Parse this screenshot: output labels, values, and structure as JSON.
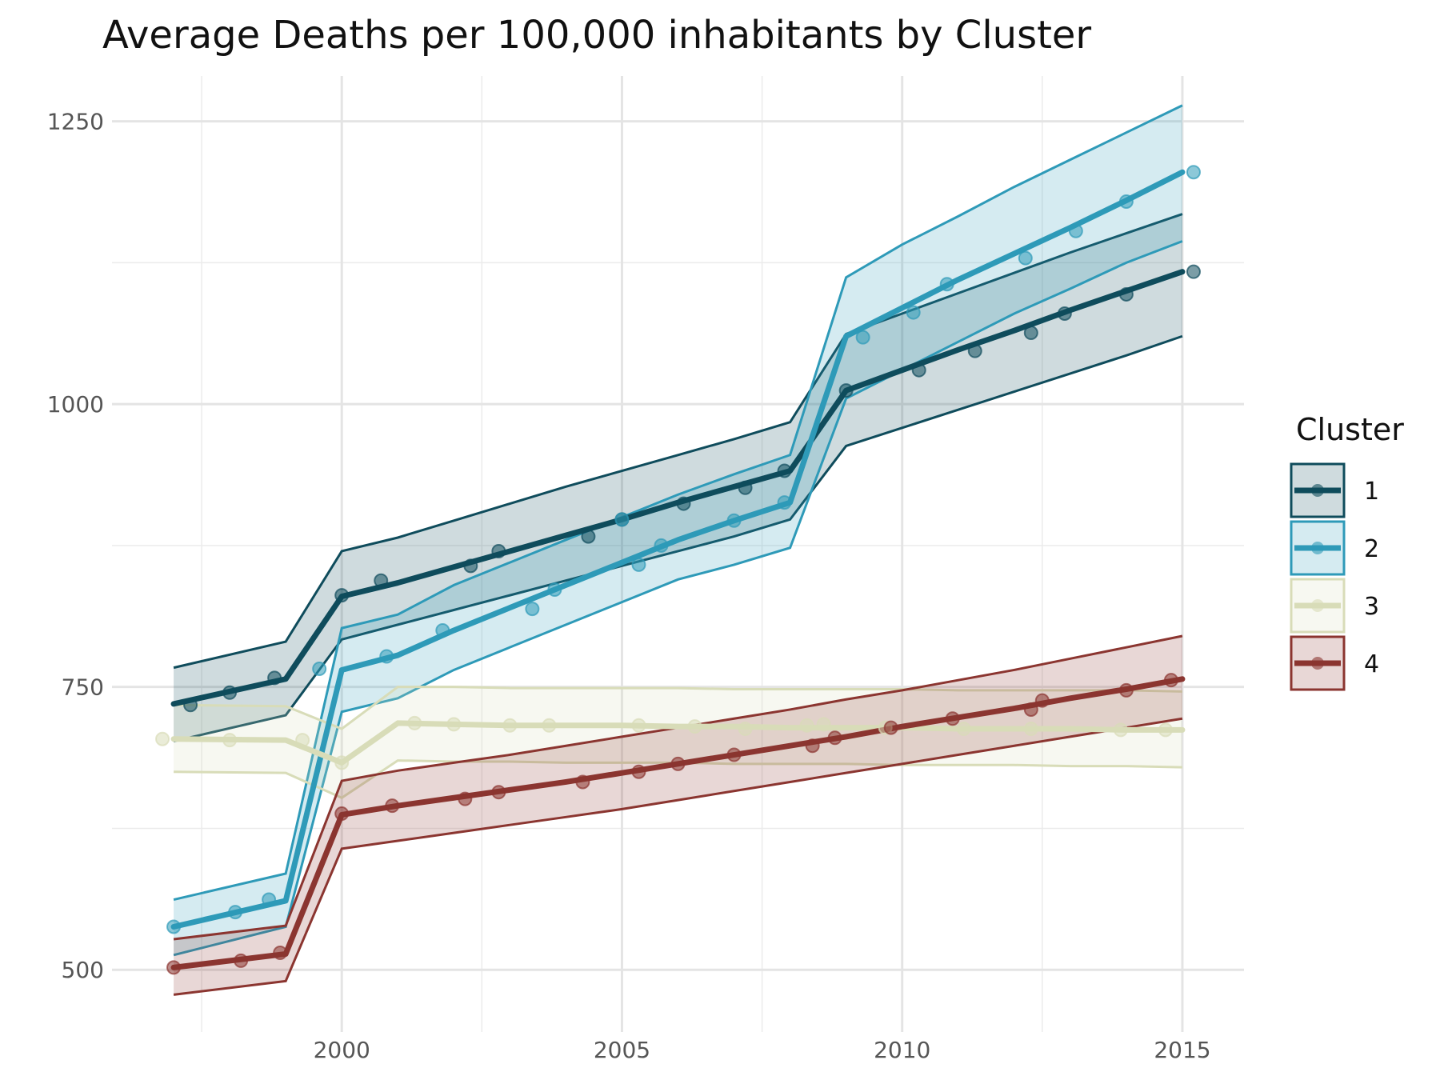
{
  "chart_data": {
    "type": "line",
    "title": "Average Deaths per 100,000 inhabitants by Cluster",
    "xlabel": "",
    "ylabel": "",
    "xlim": [
      1995.9,
      2016.1
    ],
    "ylim": [
      445,
      1290
    ],
    "x_ticks": [
      2000,
      2005,
      2010,
      2015
    ],
    "x_tick_labels": [
      "2000",
      "2005",
      "2010",
      "2015"
    ],
    "y_ticks": [
      500,
      750,
      1000,
      1250
    ],
    "y_tick_labels": [
      "500",
      "750",
      "1000",
      "1250"
    ],
    "grid": true,
    "legend": {
      "title": "Cluster",
      "position": "right"
    },
    "x": [
      1997,
      1999,
      2000,
      2001,
      2002,
      2003,
      2004,
      2005,
      2006,
      2007,
      2008,
      2009,
      2010,
      2011,
      2012,
      2013,
      2014,
      2015
    ],
    "series": [
      {
        "name": "1",
        "color": "#0f4c5c",
        "values": [
          735,
          757,
          830,
          842,
          856,
          870,
          884,
          898,
          913,
          927,
          941,
          1012,
          1030,
          1048,
          1065,
          1083,
          1100,
          1117
        ],
        "lower": [
          702,
          725,
          792,
          805,
          818,
          831,
          844,
          857,
          870,
          883,
          898,
          963,
          979,
          995,
          1011,
          1027,
          1043,
          1060
        ],
        "upper": [
          767,
          790,
          870,
          882,
          897,
          912,
          927,
          941,
          955,
          969,
          984,
          1062,
          1080,
          1098,
          1116,
          1134,
          1151,
          1168
        ],
        "points": [
          [
            1997.3,
            734
          ],
          [
            1998,
            745
          ],
          [
            1998.8,
            758
          ],
          [
            2000,
            831
          ],
          [
            2000.7,
            844
          ],
          [
            2002.3,
            857
          ],
          [
            2002.8,
            870
          ],
          [
            2004.4,
            883
          ],
          [
            2005,
            898
          ],
          [
            2006.1,
            912
          ],
          [
            2007.2,
            926
          ],
          [
            2007.9,
            941
          ],
          [
            2009,
            1012
          ],
          [
            2010.3,
            1030
          ],
          [
            2011.3,
            1047
          ],
          [
            2012.3,
            1063
          ],
          [
            2012.9,
            1080
          ],
          [
            2014,
            1097
          ],
          [
            2015.2,
            1117
          ]
        ]
      },
      {
        "name": "2",
        "color": "#2e9ab8",
        "values": [
          538,
          561,
          765,
          778,
          800,
          820,
          840,
          860,
          880,
          897,
          913,
          1060,
          1085,
          1110,
          1133,
          1156,
          1180,
          1205
        ],
        "lower": [
          513,
          538,
          728,
          740,
          765,
          785,
          805,
          825,
          845,
          858,
          873,
          1005,
          1030,
          1055,
          1080,
          1102,
          1125,
          1144
        ],
        "upper": [
          562,
          585,
          802,
          814,
          840,
          860,
          880,
          900,
          920,
          938,
          955,
          1112,
          1141,
          1166,
          1192,
          1216,
          1240,
          1264
        ],
        "points": [
          [
            1997,
            538
          ],
          [
            1998.1,
            551
          ],
          [
            1998.7,
            562
          ],
          [
            1999.6,
            766
          ],
          [
            2000.8,
            777
          ],
          [
            2001.8,
            800
          ],
          [
            2003.4,
            819
          ],
          [
            2003.8,
            836
          ],
          [
            2005,
            898
          ],
          [
            2005.3,
            858
          ],
          [
            2005.7,
            875
          ],
          [
            2007,
            897
          ],
          [
            2007.9,
            913
          ],
          [
            2009.3,
            1059
          ],
          [
            2010.2,
            1081
          ],
          [
            2010.8,
            1106
          ],
          [
            2012.2,
            1129
          ],
          [
            2013.1,
            1153
          ],
          [
            2014,
            1179
          ],
          [
            2015.2,
            1205
          ]
        ]
      },
      {
        "name": "3",
        "color": "#d8dcb8",
        "values": [
          704,
          703,
          683,
          718,
          717,
          716,
          716,
          716,
          715,
          715,
          714,
          714,
          714,
          713,
          713,
          713,
          712,
          712
        ],
        "lower": [
          675,
          674,
          652,
          685,
          684,
          684,
          683,
          683,
          683,
          682,
          682,
          682,
          681,
          681,
          681,
          680,
          680,
          679
        ],
        "upper": [
          734,
          733,
          713,
          750,
          750,
          749,
          749,
          749,
          749,
          748,
          748,
          748,
          748,
          747,
          747,
          747,
          747,
          746
        ],
        "points": [
          [
            1996.8,
            704
          ],
          [
            1998,
            703
          ],
          [
            1999.3,
            703
          ],
          [
            2000,
            683
          ],
          [
            2001.3,
            718
          ],
          [
            2002,
            717
          ],
          [
            2003,
            716
          ],
          [
            2003.7,
            716
          ],
          [
            2005.3,
            716
          ],
          [
            2006.3,
            715
          ],
          [
            2007.2,
            713
          ],
          [
            2008.3,
            716
          ],
          [
            2008.6,
            717
          ],
          [
            2009.7,
            714
          ],
          [
            2011.1,
            713
          ],
          [
            2012.3,
            713
          ],
          [
            2013.9,
            712
          ],
          [
            2014.7,
            712
          ]
        ]
      },
      {
        "name": "4",
        "color": "#8b3530",
        "values": [
          502,
          514,
          637,
          645,
          652,
          659,
          666,
          674,
          682,
          690,
          698,
          706,
          715,
          723,
          731,
          740,
          748,
          757
        ],
        "lower": [
          478,
          490,
          607,
          614,
          621,
          628,
          635,
          642,
          650,
          658,
          666,
          674,
          682,
          690,
          698,
          706,
          714,
          722
        ],
        "upper": [
          527,
          539,
          667,
          676,
          683,
          690,
          698,
          706,
          714,
          722,
          730,
          739,
          747,
          756,
          765,
          775,
          785,
          795
        ],
        "points": [
          [
            1997,
            502
          ],
          [
            1998.2,
            508
          ],
          [
            1998.9,
            515
          ],
          [
            2000,
            638
          ],
          [
            2000.9,
            645
          ],
          [
            2002.2,
            651
          ],
          [
            2002.8,
            657
          ],
          [
            2004.3,
            666
          ],
          [
            2005.3,
            675
          ],
          [
            2006,
            682
          ],
          [
            2007,
            690
          ],
          [
            2008.4,
            698
          ],
          [
            2008.8,
            705
          ],
          [
            2009.8,
            714
          ],
          [
            2010.9,
            722
          ],
          [
            2012.3,
            730
          ],
          [
            2012.5,
            738
          ],
          [
            2014,
            747
          ],
          [
            2014.8,
            756
          ]
        ]
      }
    ]
  }
}
